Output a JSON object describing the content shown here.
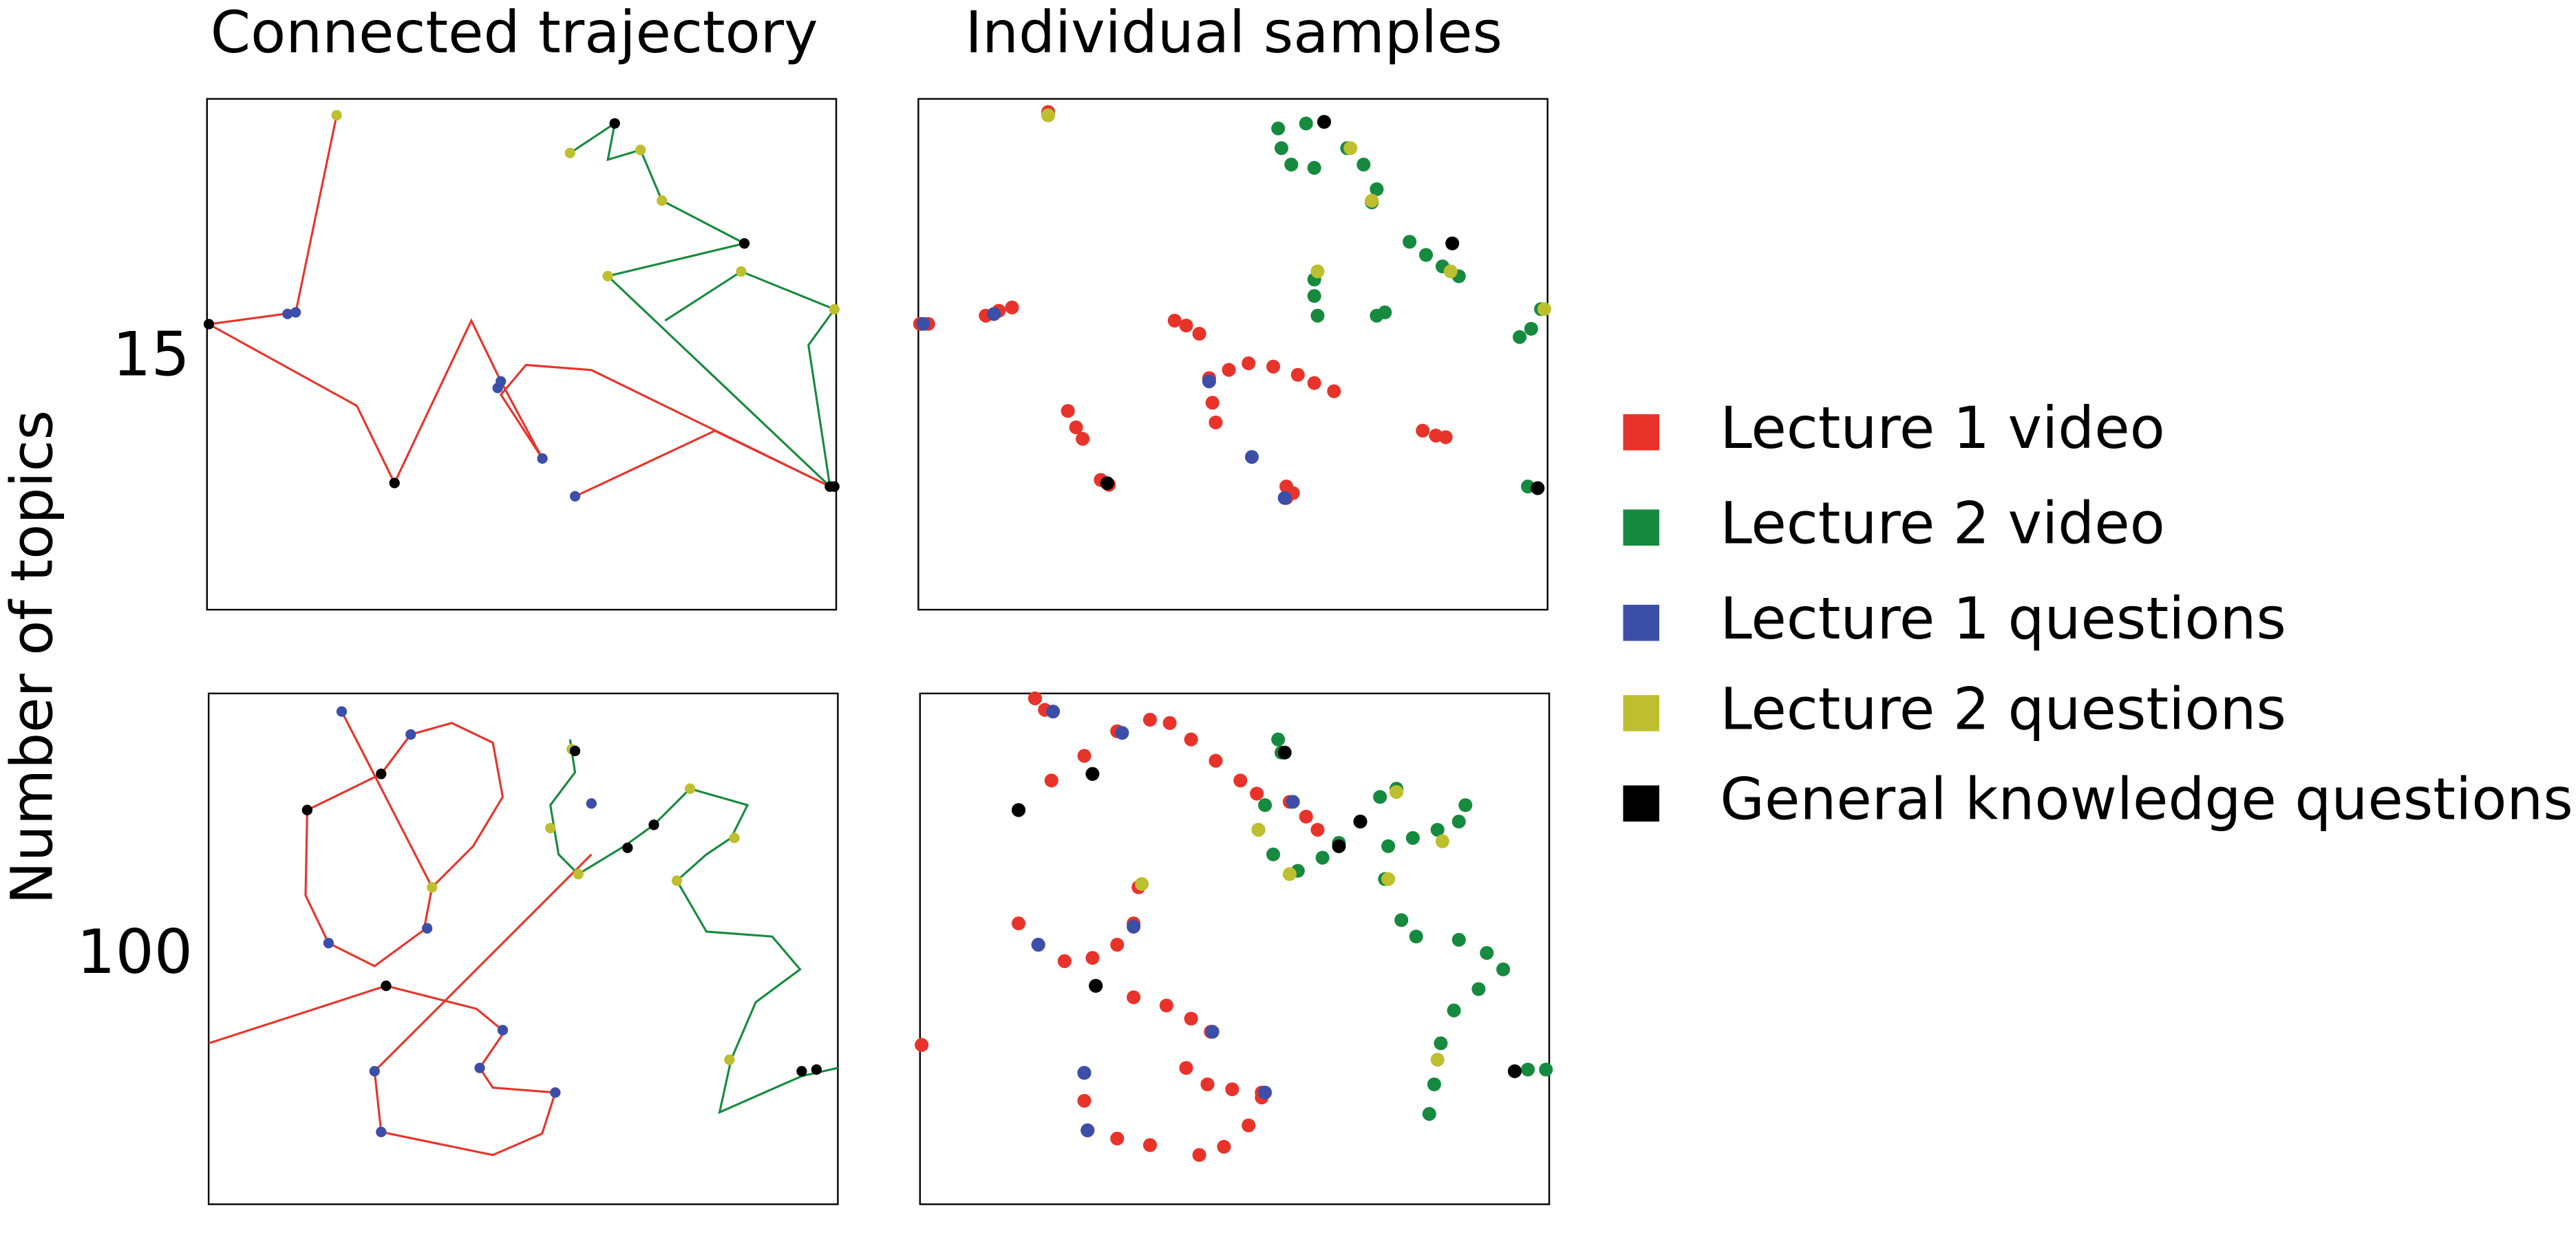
{
  "column_titles": [
    "Connected trajectory",
    "Individual samples"
  ],
  "row_labels": [
    "15",
    "100"
  ],
  "y_label": "Number of topics",
  "legend": [
    {
      "name": "Lecture 1 video",
      "color": "#e8332a"
    },
    {
      "name": "Lecture 2 video",
      "color": "#168a3e"
    },
    {
      "name": "Lecture 1 questions",
      "color": "#3b4fa8"
    },
    {
      "name": "Lecture 2 questions",
      "color": "#bdbf2f"
    },
    {
      "name": "General knowledge questions",
      "color": "#000000"
    }
  ],
  "chart_data": [
    {
      "type": "line",
      "xlim": [
        0,
        100
      ],
      "ylim": [
        0,
        100
      ],
      "lines": [
        {
          "color": "#e8332a",
          "x": [
            20.6,
            14.1,
            0.3,
            23.8,
            29.8,
            42.0,
            46.7,
            53.3,
            46.7,
            50.7,
            61.1,
            99.0,
            80.7,
            58.5
          ],
          "y": [
            96.8,
            58.2,
            55.9,
            39.9,
            24.8,
            56.6,
            44.7,
            29.6,
            42.1,
            47.9,
            46.9,
            24.1,
            35.0,
            22.2
          ]
        },
        {
          "color": "#168a3e",
          "x": [
            57.7,
            64.8,
            63.7,
            68.9,
            72.3,
            85.4,
            63.7,
            99.0,
            95.6,
            99.7,
            84.9,
            72.8
          ],
          "y": [
            89.4,
            95.2,
            88.1,
            90.0,
            80.1,
            71.7,
            65.3,
            24.1,
            51.8,
            58.8,
            66.2,
            56.6
          ]
        }
      ],
      "points": [
        {
          "color": "#3b4fa8",
          "x": [
            12.8,
            14.1,
            46.7,
            46.2,
            53.3,
            58.5
          ],
          "y": [
            57.9,
            58.2,
            44.7,
            43.4,
            29.6,
            22.2
          ]
        },
        {
          "color": "#bdbf2f",
          "x": [
            20.6,
            57.7,
            68.9,
            72.3,
            63.7,
            84.9,
            99.7
          ],
          "y": [
            96.8,
            89.4,
            90.0,
            80.1,
            65.3,
            66.2,
            58.8
          ]
        },
        {
          "color": "#000000",
          "x": [
            64.8,
            85.4,
            0.3,
            29.8,
            99.0,
            99.7
          ],
          "y": [
            95.2,
            71.7,
            55.9,
            24.8,
            24.1,
            24.1
          ]
        }
      ]
    },
    {
      "type": "scatter",
      "xlim": [
        0,
        383
      ],
      "ylim": [
        0,
        311
      ],
      "points": [
        {
          "color": "#e8332a",
          "x": [
            1,
            6,
            41,
            49,
            57,
            156,
            163,
            171,
            177,
            179,
            181,
            189,
            201,
            216,
            231,
            241,
            253,
            91,
            96,
            100,
            307,
            315,
            321,
            111,
            116,
            224,
            224,
            228,
            79
          ],
          "y": [
            174,
            174,
            179,
            182,
            184,
            176,
            173,
            168,
            141,
            126,
            114,
            146,
            150,
            148,
            143,
            138,
            133,
            121,
            111,
            104,
            109,
            106,
            105,
            79,
            76,
            75,
            68,
            71,
            303
          ]
        },
        {
          "color": "#168a3e",
          "x": [
            221,
            227,
            241,
            219,
            236,
            247,
            261,
            271,
            279,
            276,
            299,
            309,
            319,
            329,
            241,
            241,
            243,
            279,
            284,
            366,
            373,
            379,
            371
          ],
          "y": [
            281,
            271,
            269,
            293,
            296,
            297,
            281,
            271,
            256,
            248,
            224,
            216,
            209,
            203,
            201,
            191,
            179,
            179,
            181,
            166,
            171,
            183,
            75
          ]
        },
        {
          "color": "#3b4fa8",
          "x": [
            3,
            46,
            177,
            203,
            223,
            79
          ],
          "y": [
            174,
            180,
            139,
            93,
            68,
            301
          ]
        },
        {
          "color": "#bdbf2f",
          "x": [
            79,
            263,
            276,
            243,
            324,
            381
          ],
          "y": [
            301,
            281,
            249,
            206,
            206,
            183
          ]
        },
        {
          "color": "#000000",
          "x": [
            247,
            325,
            115,
            377
          ],
          "y": [
            297,
            223,
            77,
            74
          ]
        }
      ]
    },
    {
      "type": "line",
      "xlim": [
        0,
        383
      ],
      "ylim": [
        0,
        311
      ],
      "lines": [
        {
          "color": "#e8332a",
          "x": [
            81,
            136,
            131,
            101,
            73,
            59,
            60,
            105,
            123,
            148,
            173,
            179,
            161,
            136,
            null,
            0,
            108,
            163,
            180,
            165,
            173,
            211,
            203,
            173,
            105,
            101,
            233
          ],
          "y": [
            300,
            193,
            167,
            145,
            159,
            188,
            240,
            262,
            286,
            293,
            281,
            248,
            218,
            193,
            null,
            98,
            133,
            119,
            105,
            83,
            71,
            68,
            43,
            30,
            44,
            81,
            213
          ]
        },
        {
          "color": "#168a3e",
          "x": [
            220,
            223,
            208,
            213,
            225,
            253,
            271,
            293,
            328,
            318,
            303,
            285,
            303,
            343,
            360,
            333,
            318,
            311,
            361,
            383
          ],
          "y": [
            283,
            263,
            243,
            213,
            201,
            218,
            231,
            253,
            243,
            223,
            213,
            197,
            166,
            163,
            143,
            123,
            88,
            56,
            78,
            83
          ]
        }
      ],
      "points": [
        {
          "color": "#3b4fa8",
          "x": [
            81,
            123,
            133,
            73,
            179,
            165,
            211,
            101,
            105,
            233
          ],
          "y": [
            300,
            286,
            168,
            159,
            106,
            83,
            68,
            81,
            44,
            244
          ]
        },
        {
          "color": "#bdbf2f",
          "x": [
            136,
            208,
            225,
            293,
            320,
            285,
            317,
            221
          ],
          "y": [
            193,
            229,
            201,
            253,
            223,
            197,
            88,
            277
          ]
        },
        {
          "color": "#000000",
          "x": [
            60,
            105,
            108,
            223,
            255,
            271,
            361,
            370
          ],
          "y": [
            240,
            262,
            133,
            276,
            217,
            231,
            81,
            82
          ]
        }
      ]
    },
    {
      "type": "scatter",
      "xlim": [
        0,
        383
      ],
      "ylim": [
        0,
        311
      ],
      "points": [
        {
          "color": "#e8332a",
          "x": [
            70,
            76,
            60,
            80,
            100,
            120,
            140,
            152,
            165,
            180,
            195,
            205,
            225,
            235,
            242,
            60,
            72,
            88,
            105,
            120,
            130,
            133,
            107,
            130,
            150,
            165,
            177,
            162,
            175,
            190,
            208,
            100,
            100,
            102,
            120,
            140,
            170,
            185,
            200,
            208,
            1
          ],
          "y": [
            308,
            301,
            240,
            258,
            273,
            288,
            295,
            293,
            283,
            270,
            258,
            250,
            245,
            236,
            228,
            171,
            158,
            148,
            150,
            158,
            171,
            193,
            133,
            126,
            121,
            113,
            105,
            83,
            73,
            70,
            68,
            80,
            63,
            45,
            40,
            36,
            30,
            35,
            48,
            65,
            97
          ]
        },
        {
          "color": "#168a3e",
          "x": [
            218,
            220,
            210,
            206,
            215,
            230,
            245,
            255,
            268,
            280,
            290,
            285,
            300,
            315,
            328,
            332,
            283,
            293,
            302,
            328,
            345,
            355,
            340,
            325,
            317,
            313,
            310,
            381,
            370
          ],
          "y": [
            283,
            275,
            243,
            228,
            213,
            203,
            211,
            220,
            233,
            248,
            253,
            218,
            223,
            228,
            233,
            243,
            198,
            173,
            163,
            161,
            153,
            143,
            131,
            118,
            98,
            73,
            55,
            82,
            82
          ]
        },
        {
          "color": "#3b4fa8",
          "x": [
            81,
            123,
            72,
            130,
            178,
            210,
            100,
            102,
            227
          ],
          "y": [
            300,
            287,
            158,
            169,
            105,
            68,
            80,
            45,
            245
          ]
        },
        {
          "color": "#bdbf2f",
          "x": [
            135,
            206,
            225,
            285,
            318,
            290,
            315
          ],
          "y": [
            195,
            228,
            201,
            198,
            221,
            251,
            88
          ]
        },
        {
          "color": "#000000",
          "x": [
            60,
            105,
            107,
            222,
            255,
            268,
            362
          ],
          "y": [
            240,
            262,
            133,
            275,
            218,
            233,
            81
          ]
        }
      ]
    }
  ]
}
